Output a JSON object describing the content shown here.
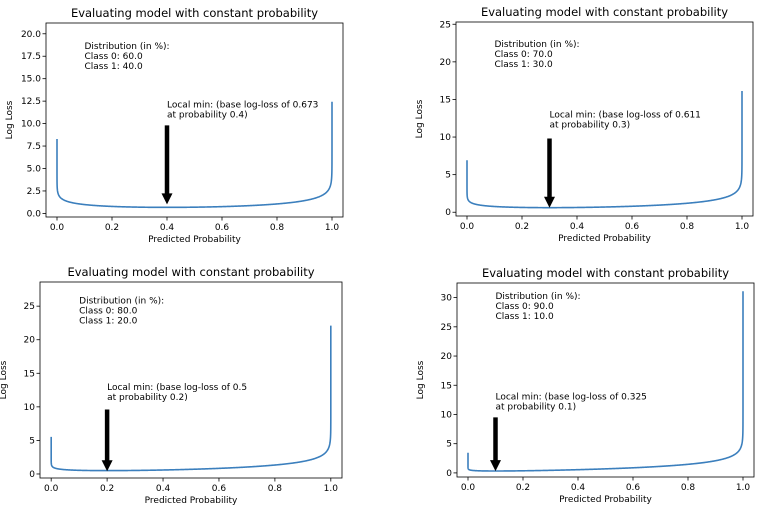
{
  "chart_data": [
    {
      "type": "line",
      "title": "Evaluating model with constant probability",
      "xlabel": "Predicted Probability",
      "ylabel": "Log Loss",
      "xlim": [
        -0.04,
        1.04
      ],
      "ylim": [
        -0.4,
        21.2
      ],
      "yticks": [
        0.0,
        2.5,
        5.0,
        7.5,
        10.0,
        12.5,
        15.0,
        17.5,
        20.0
      ],
      "ytick_labels": [
        "0.0",
        "2.5",
        "5.0",
        "7.5",
        "10.0",
        "12.5",
        "15.0",
        "17.5",
        "20.0"
      ],
      "xticks": [
        0.0,
        0.2,
        0.4,
        0.6,
        0.8,
        1.0
      ],
      "xtick_labels": [
        "0.0",
        "0.2",
        "0.4",
        "0.6",
        "0.8",
        "1.0"
      ],
      "class1_fraction": 0.4,
      "eps": 1e-09,
      "dist_lines": [
        "Distribution (in %):",
        "Class 0: 60.0",
        "Class 1: 40.0"
      ],
      "min_lines": [
        "Local min: (base log-loss of 0.673",
        "at probability 0.4)"
      ],
      "arrow": {
        "x": 0.4,
        "y_tip": 1.0,
        "y_tail": 9.8
      },
      "dist_anchor": {
        "x": 0.1,
        "y": 18.3
      },
      "min_anchor": {
        "x": 0.4,
        "y": 11.8
      }
    },
    {
      "type": "line",
      "title": "Evaluating model with constant probability",
      "xlabel": "Predicted Probability",
      "ylabel": "Log Loss",
      "xlim": [
        -0.04,
        1.04
      ],
      "ylim": [
        -0.5,
        25.3
      ],
      "yticks": [
        0,
        5,
        10,
        15,
        20,
        25
      ],
      "ytick_labels": [
        "0",
        "5",
        "10",
        "15",
        "20",
        "25"
      ],
      "xticks": [
        0.0,
        0.2,
        0.4,
        0.6,
        0.8,
        1.0
      ],
      "xtick_labels": [
        "0.0",
        "0.2",
        "0.4",
        "0.6",
        "0.8",
        "1.0"
      ],
      "class1_fraction": 0.3,
      "eps": 1e-10,
      "dist_lines": [
        "Distribution (in %):",
        "Class 0: 70.0",
        "Class 1: 30.0"
      ],
      "min_lines": [
        "Local min: (base log-loss of 0.611",
        "at probability 0.3)"
      ],
      "arrow": {
        "x": 0.3,
        "y_tip": 0.6,
        "y_tail": 9.8
      },
      "dist_anchor": {
        "x": 0.1,
        "y": 22.0
      },
      "min_anchor": {
        "x": 0.3,
        "y": 12.6
      }
    },
    {
      "type": "line",
      "title": "Evaluating model with constant probability",
      "xlabel": "Predicted Probability",
      "ylabel": "Log Loss",
      "xlim": [
        -0.04,
        1.04
      ],
      "ylim": [
        -0.6,
        28.6
      ],
      "yticks": [
        0,
        5,
        10,
        15,
        20,
        25
      ],
      "ytick_labels": [
        "0",
        "5",
        "10",
        "15",
        "20",
        "25"
      ],
      "xticks": [
        0.0,
        0.2,
        0.4,
        0.6,
        0.8,
        1.0
      ],
      "xtick_labels": [
        "0.0",
        "0.2",
        "0.4",
        "0.6",
        "0.8",
        "1.0"
      ],
      "class1_fraction": 0.2,
      "eps": 1e-12,
      "dist_lines": [
        "Distribution (in %):",
        "Class 0: 80.0",
        "Class 1: 20.0"
      ],
      "min_lines": [
        "Local min: (base log-loss of 0.5",
        "at probability 0.2)"
      ],
      "arrow": {
        "x": 0.2,
        "y_tip": 0.4,
        "y_tail": 9.6
      },
      "dist_anchor": {
        "x": 0.1,
        "y": 25.4
      },
      "min_anchor": {
        "x": 0.2,
        "y": 12.5
      }
    },
    {
      "type": "line",
      "title": "Evaluating model with constant probability",
      "xlabel": "Predicted Probability",
      "ylabel": "Log Loss",
      "xlim": [
        -0.04,
        1.04
      ],
      "ylim": [
        -0.7,
        32.5
      ],
      "yticks": [
        0,
        5,
        10,
        15,
        20,
        25,
        30
      ],
      "ytick_labels": [
        "0",
        "5",
        "10",
        "15",
        "20",
        "25",
        "30"
      ],
      "xticks": [
        0.0,
        0.2,
        0.4,
        0.6,
        0.8,
        1.0
      ],
      "xtick_labels": [
        "0.0",
        "0.2",
        "0.4",
        "0.6",
        "0.8",
        "1.0"
      ],
      "class1_fraction": 0.1,
      "eps": 1e-15,
      "dist_lines": [
        "Distribution (in %):",
        "Class 0: 90.0",
        "Class 1: 10.0"
      ],
      "min_lines": [
        "Local min: (base log-loss of 0.325",
        "at probability 0.1)"
      ],
      "arrow": {
        "x": 0.1,
        "y_tip": 0.3,
        "y_tail": 9.5
      },
      "dist_anchor": {
        "x": 0.1,
        "y": 29.8
      },
      "min_anchor": {
        "x": 0.1,
        "y": 12.6
      }
    }
  ]
}
